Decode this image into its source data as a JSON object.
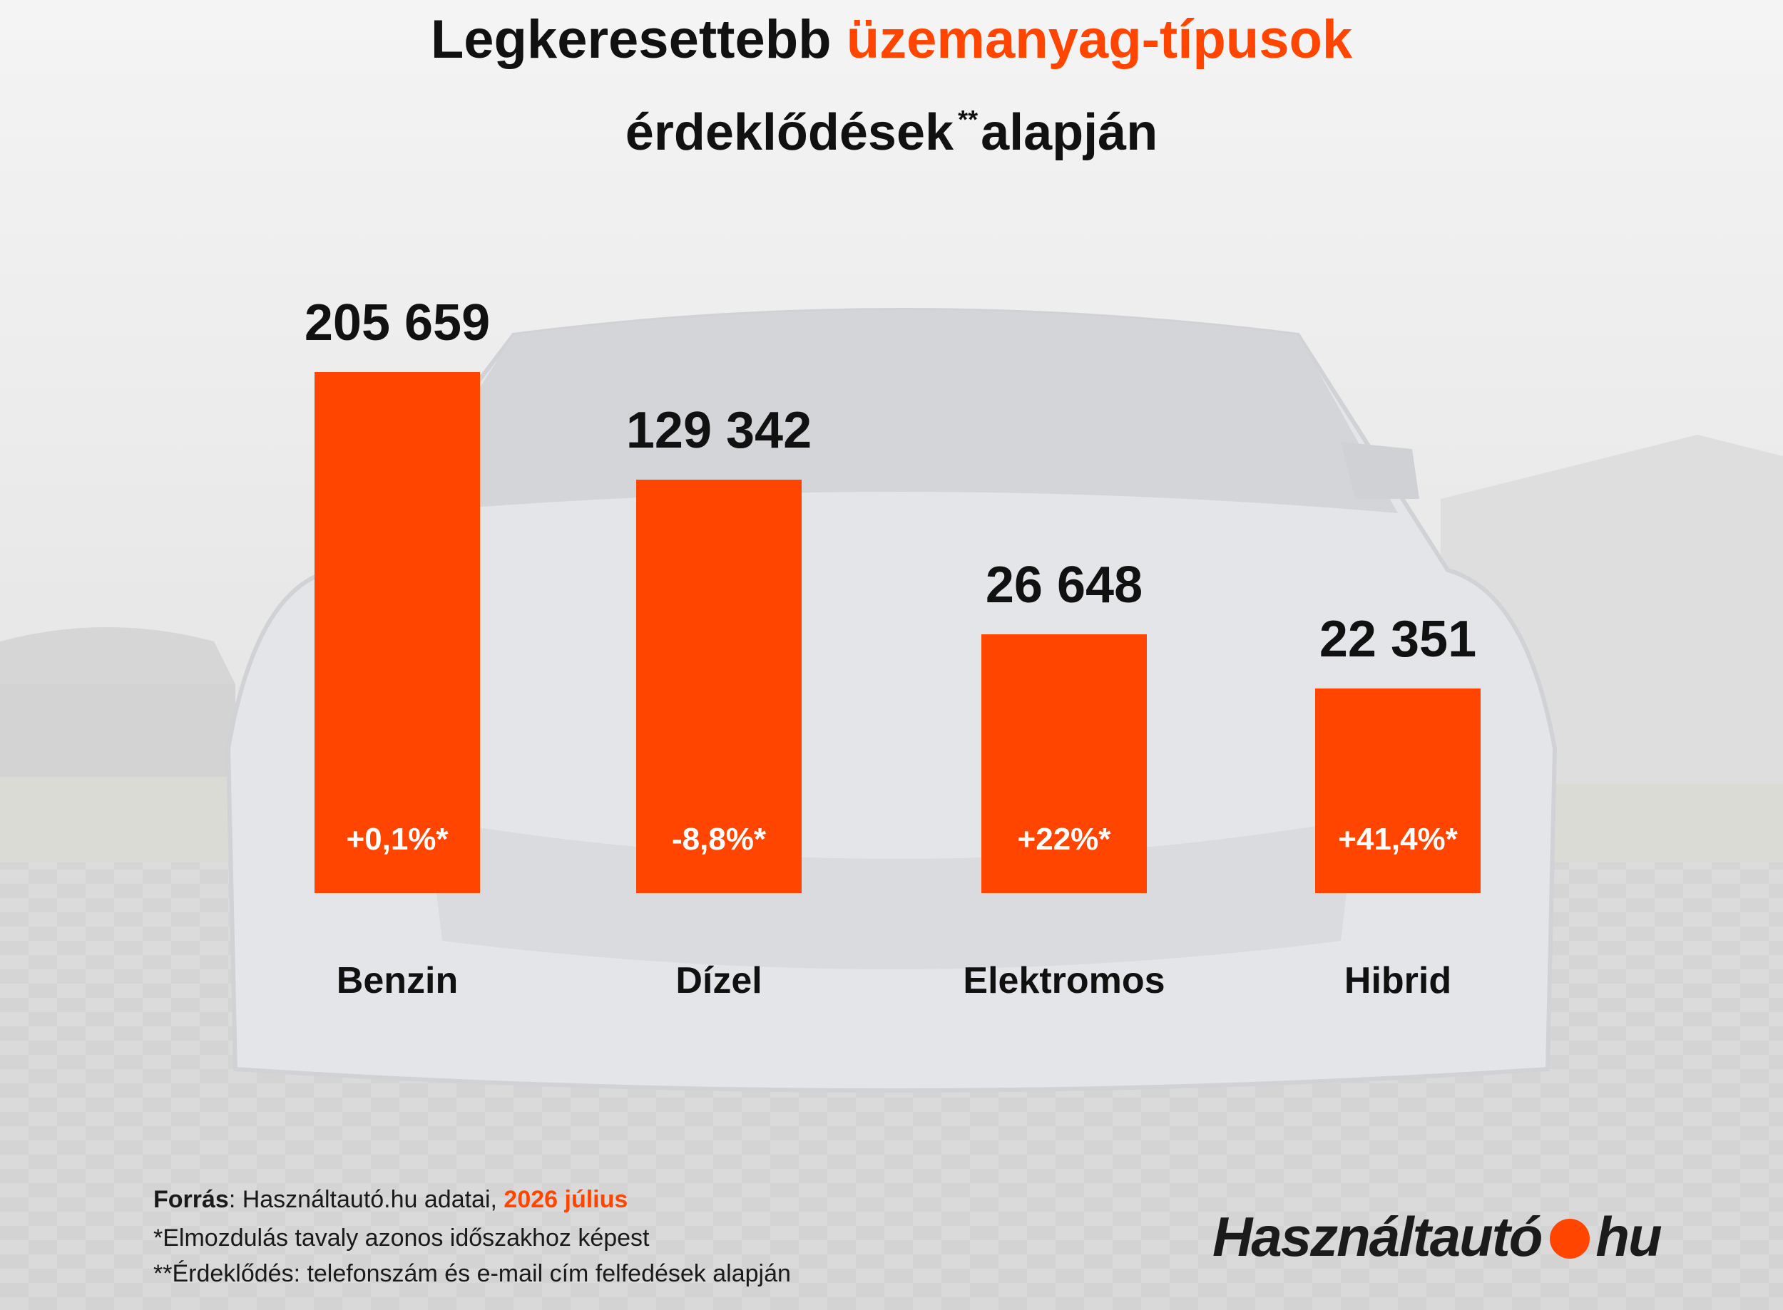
{
  "title": {
    "part1": "Legkeresettebb",
    "part2": "üzemanyag-típusok",
    "line2_a": "érdeklődések",
    "line2_sup": "**",
    "line2_b": "alapján"
  },
  "chart_data": {
    "type": "bar",
    "categories": [
      "Benzin",
      "Dízel",
      "Elektromos",
      "Hibrid"
    ],
    "values": [
      205659,
      129342,
      26648,
      22351
    ],
    "value_labels": [
      "205 659",
      "129 342",
      "26 648",
      "22 351"
    ],
    "change_labels": [
      "+0,1%*",
      "-8,8%*",
      "+22%*",
      "+41,4%*"
    ],
    "xlabel": "",
    "ylabel": "",
    "grid": false,
    "legend": "none",
    "color": "#ff4500"
  },
  "footer": {
    "source_label": "Forrás",
    "source_text": ": Használtautó.hu adatai, ",
    "source_date": "2026 július",
    "note1": "*Elmozdulás tavaly azonos időszakhoz képest",
    "note2": "**Érdeklődés: telefonszám és e-mail cím felfedések alapján"
  },
  "logo": {
    "left": "Használtautó",
    "right": "hu"
  }
}
